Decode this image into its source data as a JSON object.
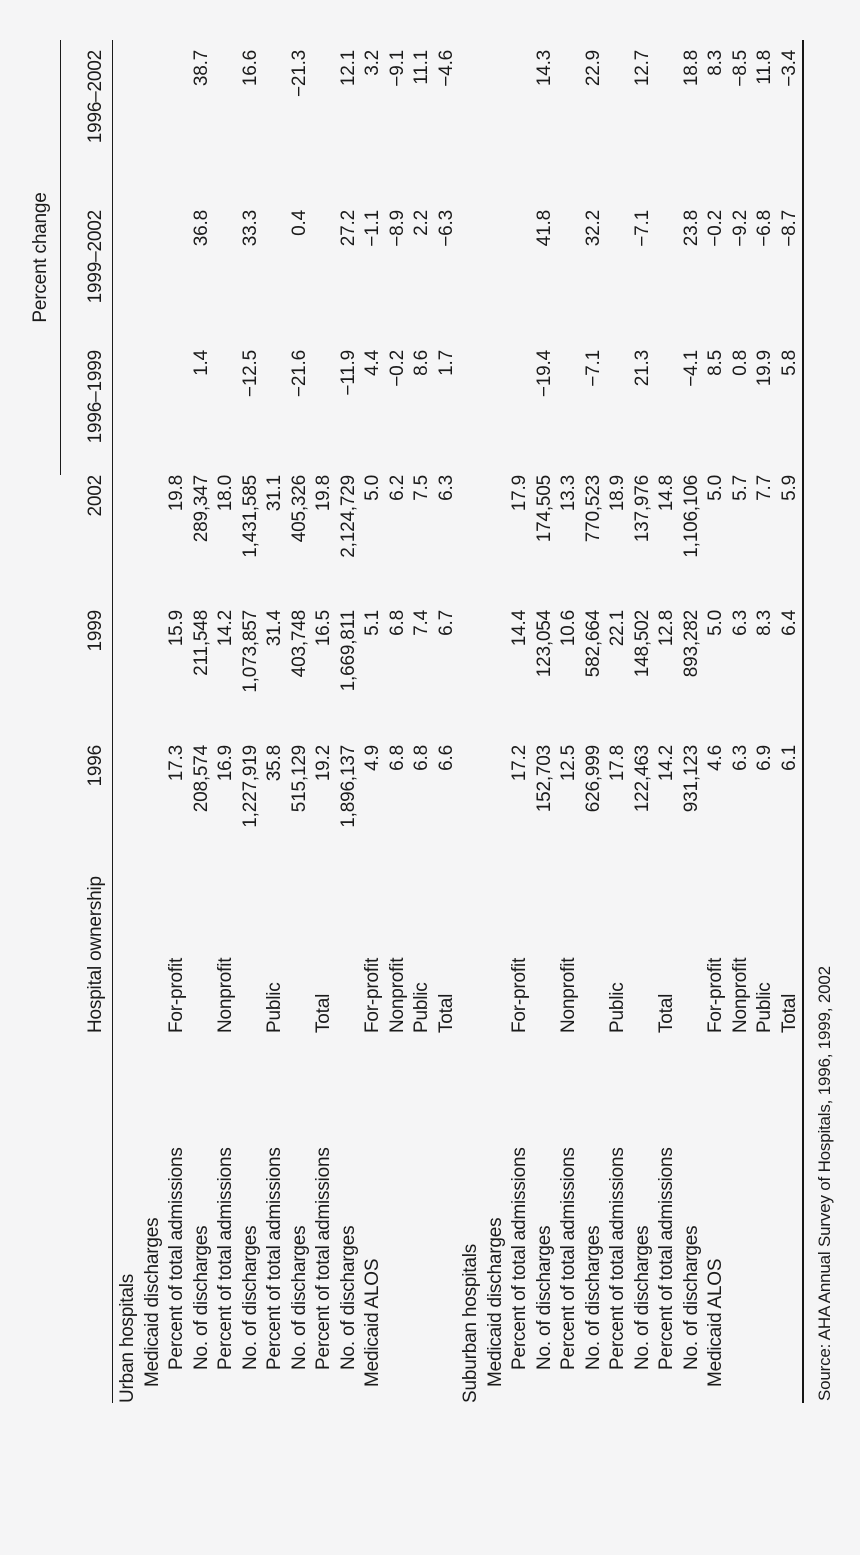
{
  "colors": {
    "background": "#f5f5f6",
    "text": "#1b1b1b",
    "rule": "#161616"
  },
  "table": {
    "group_header": "Percent change",
    "columns": [
      "",
      "Hospital ownership",
      "1996",
      "1999",
      "2002",
      "1996–1999",
      "1999–2002",
      "1996–2002"
    ],
    "rows": [
      {
        "label": "Urban hospitals",
        "indent": 0,
        "ownership": "",
        "values": [
          "",
          "",
          "",
          "",
          "",
          ""
        ]
      },
      {
        "label": "Medicaid discharges",
        "indent": 1,
        "ownership": "",
        "values": [
          "",
          "",
          "",
          "",
          "",
          ""
        ]
      },
      {
        "label": "Percent of total admissions",
        "indent": 2,
        "ownership": "For-profit",
        "values": [
          "17.3",
          "15.9",
          "19.8",
          "",
          "",
          ""
        ]
      },
      {
        "label": "No. of discharges",
        "indent": 2,
        "ownership": "",
        "values": [
          "208,574",
          "211,548",
          "289,347",
          "1.4",
          "36.8",
          "38.7"
        ]
      },
      {
        "label": "Percent of total admissions",
        "indent": 2,
        "ownership": "Nonprofit",
        "values": [
          "16.9",
          "14.2",
          "18.0",
          "",
          "",
          ""
        ]
      },
      {
        "label": "No. of discharges",
        "indent": 2,
        "ownership": "",
        "values": [
          "1,227,919",
          "1,073,857",
          "1,431,585",
          "−12.5",
          "33.3",
          "16.6"
        ]
      },
      {
        "label": "Percent of total admissions",
        "indent": 2,
        "ownership": "Public",
        "values": [
          "35.8",
          "31.4",
          "31.1",
          "",
          "",
          ""
        ]
      },
      {
        "label": "No. of discharges",
        "indent": 2,
        "ownership": "",
        "values": [
          "515,129",
          "403,748",
          "405,326",
          "−21.6",
          "0.4",
          "−21.3"
        ]
      },
      {
        "label": "Percent of total admissions",
        "indent": 2,
        "ownership": "Total",
        "values": [
          "19.2",
          "16.5",
          "19.8",
          "",
          "",
          ""
        ]
      },
      {
        "label": "No. of discharges",
        "indent": 2,
        "ownership": "",
        "values": [
          "1,896,137",
          "1,669,811",
          "2,124,729",
          "−11.9",
          "27.2",
          "12.1"
        ]
      },
      {
        "label": "Medicaid ALOS",
        "indent": 1,
        "ownership": "For-profit",
        "values": [
          "4.9",
          "5.1",
          "5.0",
          "4.4",
          "−1.1",
          "3.2"
        ]
      },
      {
        "label": "",
        "indent": 1,
        "ownership": "Nonprofit",
        "values": [
          "6.8",
          "6.8",
          "6.2",
          "−0.2",
          "−8.9",
          "−9.1"
        ]
      },
      {
        "label": "",
        "indent": 1,
        "ownership": "Public",
        "values": [
          "6.8",
          "7.4",
          "7.5",
          "8.6",
          "2.2",
          "11.1"
        ]
      },
      {
        "label": "",
        "indent": 1,
        "ownership": "Total",
        "values": [
          "6.6",
          "6.7",
          "6.3",
          "1.7",
          "−6.3",
          "−4.6"
        ]
      },
      {
        "label": "Suburban hospitals",
        "indent": 0,
        "ownership": "",
        "values": [
          "",
          "",
          "",
          "",
          "",
          ""
        ]
      },
      {
        "label": "Medicaid discharges",
        "indent": 1,
        "ownership": "",
        "values": [
          "",
          "",
          "",
          "",
          "",
          ""
        ]
      },
      {
        "label": "Percent of total admissions",
        "indent": 2,
        "ownership": "For-profit",
        "values": [
          "17.2",
          "14.4",
          "17.9",
          "",
          "",
          ""
        ]
      },
      {
        "label": "No. of discharges",
        "indent": 2,
        "ownership": "",
        "values": [
          "152,703",
          "123,054",
          "174,505",
          "−19.4",
          "41.8",
          "14.3"
        ]
      },
      {
        "label": "Percent of total admissions",
        "indent": 2,
        "ownership": "Nonprofit",
        "values": [
          "12.5",
          "10.6",
          "13.3",
          "",
          "",
          ""
        ]
      },
      {
        "label": "No. of discharges",
        "indent": 2,
        "ownership": "",
        "values": [
          "626,999",
          "582,664",
          "770,523",
          "−7.1",
          "32.2",
          "22.9"
        ]
      },
      {
        "label": "Percent of total admissions",
        "indent": 2,
        "ownership": "Public",
        "values": [
          "17.8",
          "22.1",
          "18.9",
          "",
          "",
          ""
        ]
      },
      {
        "label": "No. of discharges",
        "indent": 2,
        "ownership": "",
        "values": [
          "122,463",
          "148,502",
          "137,976",
          "21.3",
          "−7.1",
          "12.7"
        ]
      },
      {
        "label": "Percent of total admissions",
        "indent": 2,
        "ownership": "Total",
        "values": [
          "14.2",
          "12.8",
          "14.8",
          "",
          "",
          ""
        ]
      },
      {
        "label": "No. of discharges",
        "indent": 2,
        "ownership": "",
        "values": [
          "931,123",
          "893,282",
          "1,106,106",
          "−4.1",
          "23.8",
          "18.8"
        ]
      },
      {
        "label": "Medicaid ALOS",
        "indent": 1,
        "ownership": "For-profit",
        "values": [
          "4.6",
          "5.0",
          "5.0",
          "8.5",
          "−0.2",
          "8.3"
        ]
      },
      {
        "label": "",
        "indent": 1,
        "ownership": "Nonprofit",
        "values": [
          "6.3",
          "6.3",
          "5.7",
          "0.8",
          "−9.2",
          "−8.5"
        ]
      },
      {
        "label": "",
        "indent": 1,
        "ownership": "Public",
        "values": [
          "6.9",
          "8.3",
          "7.7",
          "19.9",
          "−6.8",
          "11.8"
        ]
      },
      {
        "label": "",
        "indent": 1,
        "ownership": "Total",
        "values": [
          "6.1",
          "6.4",
          "5.9",
          "5.8",
          "−8.7",
          "−3.4"
        ]
      }
    ],
    "source": "Source: AHA Annual Survey of Hospitals, 1996, 1999, 2002"
  }
}
